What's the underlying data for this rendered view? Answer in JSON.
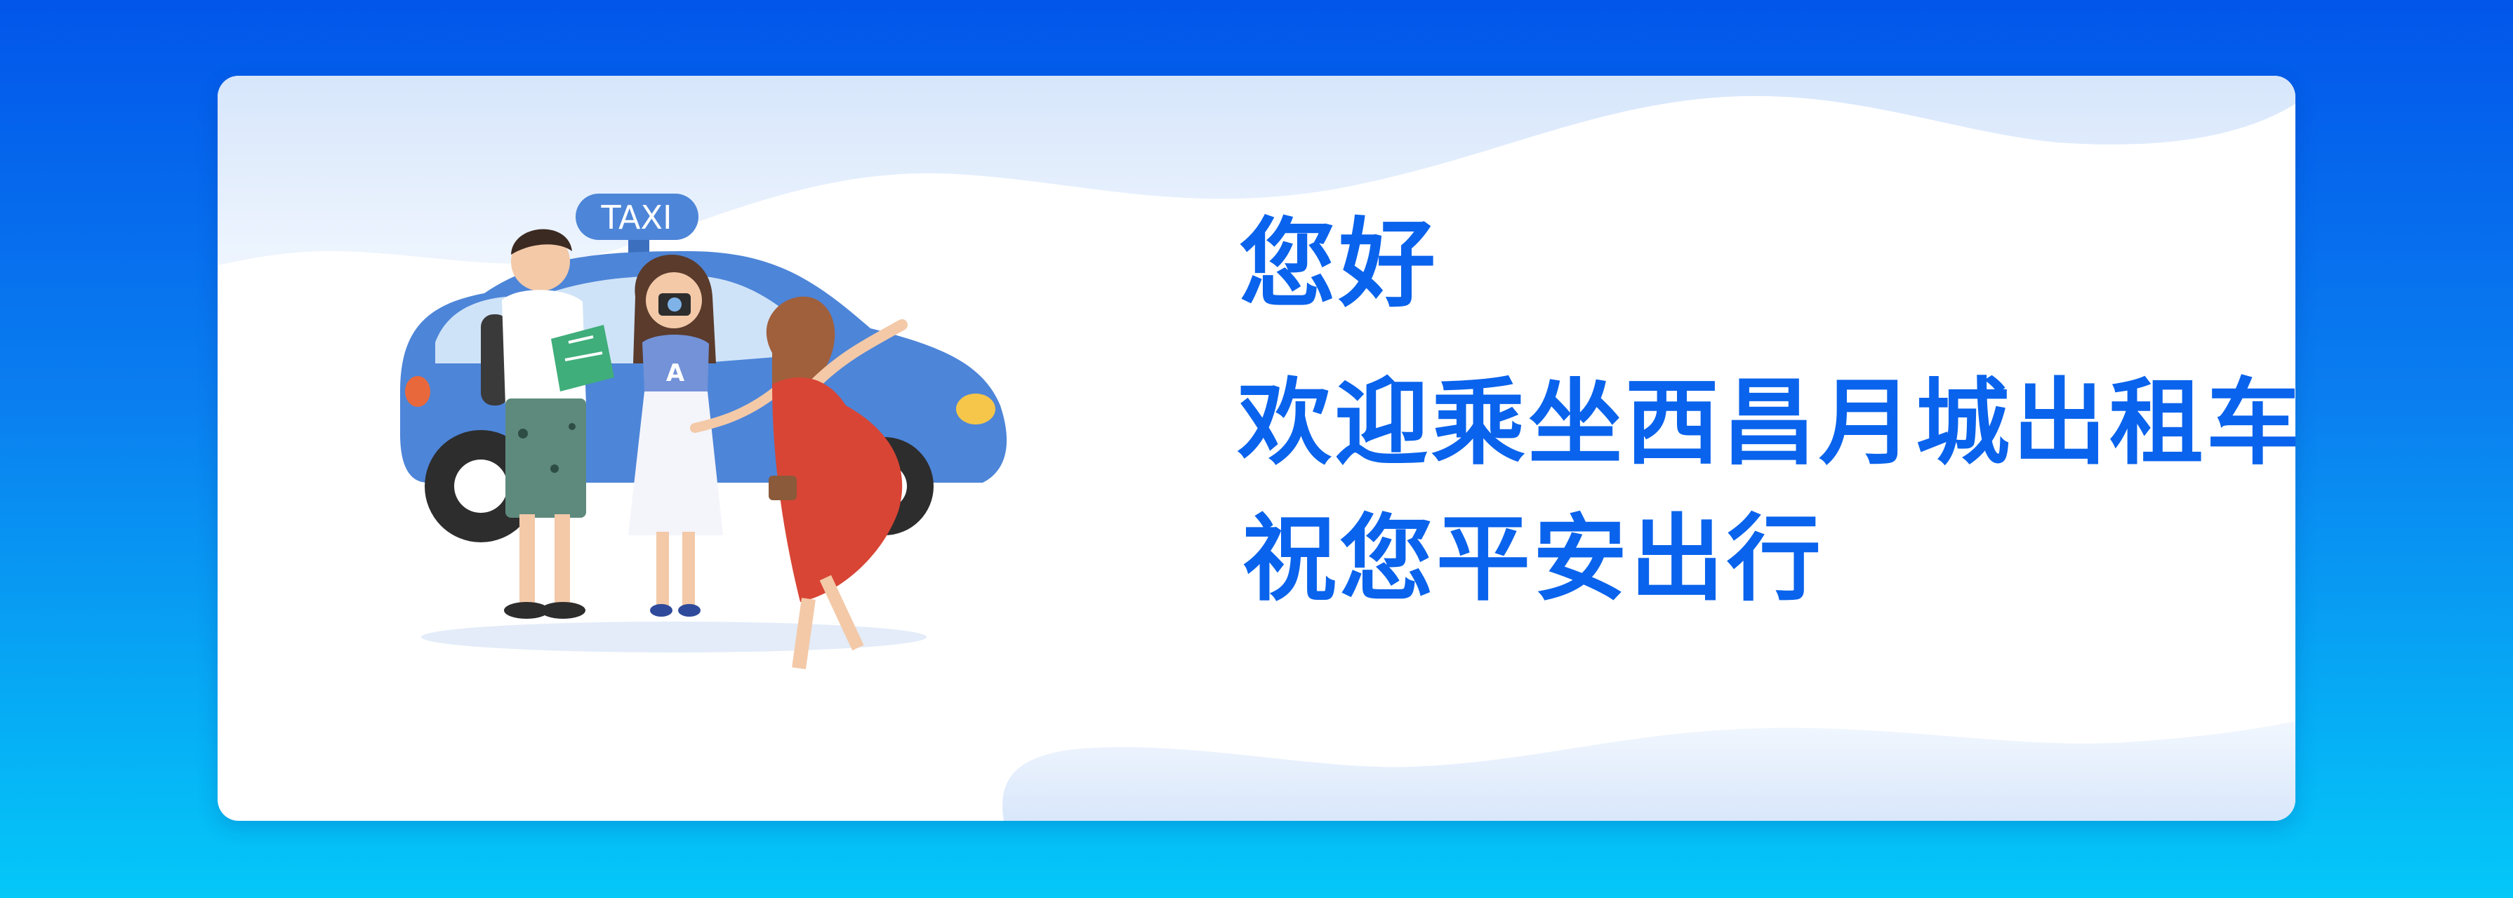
{
  "banner": {
    "greeting": "您好",
    "welcome": "欢迎乘坐西昌月城出租车",
    "safe_travel": "祝您平安出行",
    "taxi_sign": "TAXI",
    "shirt_letter": "A"
  },
  "colors": {
    "background_top": "#0256ea",
    "background_bottom": "#04c8f8",
    "card": "#ffffff",
    "text": "#0a63ec",
    "taxi_body": "#4d85d8",
    "wave": "#dbe8fb"
  },
  "illustration": {
    "subject": "blue-taxi-with-three-tourists"
  }
}
